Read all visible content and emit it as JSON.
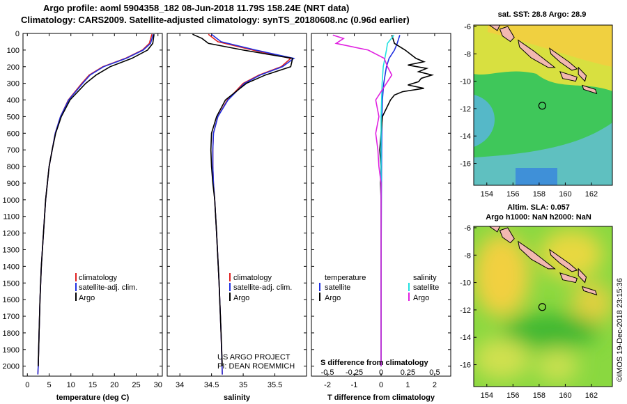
{
  "title": {
    "line1": "Argo profile: aoml 5904358_182 08-Jun-2018 11.79S 158.24E (NRT data)",
    "line2": "Climatology: CARS2009. Satellite-adjusted climatology: synTS_20180608.nc (0.96d earlier)"
  },
  "colors": {
    "climatology": "#e02020",
    "satellite": "#2030e0",
    "argo": "#000000",
    "sal_satellite": "#20e0e0",
    "sal_argo": "#e020e0"
  },
  "chart_data": [
    {
      "type": "line",
      "xlabel": "temperature (deg C)",
      "xlim": [
        -1,
        31
      ],
      "ylim": [
        2060,
        0
      ],
      "x_ticks": [
        0,
        5,
        10,
        15,
        20,
        25,
        30
      ],
      "y_ticks": [
        0,
        100,
        200,
        300,
        400,
        500,
        600,
        700,
        800,
        900,
        1000,
        1100,
        1200,
        1300,
        1400,
        1500,
        1600,
        1700,
        1800,
        1900,
        2000
      ],
      "legend": [
        "climatology",
        "satellite-adj. clim.",
        "Argo"
      ],
      "series": [
        {
          "name": "climatology",
          "depth": [
            5,
            60,
            100,
            150,
            200,
            250,
            300,
            400,
            500,
            600,
            700,
            800,
            900,
            1000,
            1200,
            1400,
            1600,
            1800,
            2000,
            2050
          ],
          "values": [
            28.6,
            28.0,
            26.4,
            22.5,
            17.3,
            14.2,
            12.5,
            9.4,
            7.6,
            6.4,
            5.7,
            5.0,
            4.6,
            4.2,
            3.7,
            3.2,
            2.9,
            2.7,
            2.5,
            2.4
          ]
        },
        {
          "name": "satellite-adj. clim.",
          "depth": [
            5,
            60,
            100,
            150,
            200,
            250,
            300,
            400,
            500,
            600,
            700,
            800,
            900,
            1000,
            1200,
            1400,
            1600,
            1800,
            2000,
            2050
          ],
          "values": [
            28.9,
            28.3,
            26.6,
            22.7,
            17.5,
            14.4,
            12.7,
            9.5,
            7.6,
            6.4,
            5.7,
            5.0,
            4.6,
            4.2,
            3.7,
            3.2,
            2.9,
            2.7,
            2.5,
            2.4
          ]
        },
        {
          "name": "Argo",
          "depth": [
            5,
            60,
            100,
            150,
            200,
            250,
            300,
            400,
            500,
            600,
            700,
            800,
            900,
            1000,
            1200,
            1400,
            1600,
            1800,
            2000
          ],
          "values": [
            29.1,
            28.8,
            27.6,
            24.0,
            19.0,
            15.8,
            13.4,
            9.8,
            7.8,
            6.5,
            5.7,
            5.0,
            4.6,
            4.2,
            3.7,
            3.2,
            2.9,
            2.7,
            2.5
          ]
        }
      ]
    },
    {
      "type": "line",
      "xlabel": "salinity",
      "xlim": [
        33.8,
        36.0
      ],
      "ylim": [
        2060,
        0
      ],
      "x_ticks": [
        34,
        34.5,
        35,
        35.5
      ],
      "legend": [
        "climatology",
        "satellite-adj. clim.",
        "Argo"
      ],
      "credit": [
        "US ARGO PROJECT",
        "PI: DEAN ROEMMICH"
      ],
      "series": [
        {
          "name": "climatology",
          "depth": [
            5,
            50,
            100,
            150,
            200,
            250,
            300,
            400,
            500,
            600,
            700,
            800,
            900,
            1000,
            1200,
            1500,
            1800,
            2050
          ],
          "values": [
            34.45,
            34.6,
            35.15,
            35.75,
            35.6,
            35.25,
            35.0,
            34.75,
            34.6,
            34.53,
            34.52,
            34.52,
            34.53,
            34.55,
            34.58,
            34.62,
            34.65,
            34.67
          ]
        },
        {
          "name": "satellite-adj. clim.",
          "depth": [
            5,
            50,
            100,
            150,
            200,
            250,
            300,
            400,
            500,
            600,
            700,
            800,
            900,
            1000,
            1200,
            1500,
            1800,
            2050
          ],
          "values": [
            34.5,
            34.65,
            35.2,
            35.8,
            35.62,
            35.27,
            35.02,
            34.76,
            34.6,
            34.53,
            34.52,
            34.52,
            34.53,
            34.55,
            34.58,
            34.62,
            34.65,
            34.67
          ]
        },
        {
          "name": "Argo",
          "depth": [
            5,
            30,
            60,
            100,
            150,
            200,
            250,
            300,
            400,
            500,
            600,
            700,
            800,
            900,
            1000,
            1200,
            1500,
            1800,
            2000
          ],
          "values": [
            34.2,
            34.35,
            34.45,
            35.0,
            35.78,
            35.75,
            35.35,
            35.05,
            34.72,
            34.58,
            34.5,
            34.49,
            34.5,
            34.52,
            34.55,
            34.58,
            34.62,
            34.65,
            34.67
          ]
        }
      ]
    },
    {
      "type": "line",
      "xlabel": "T difference from climatology",
      "xlabel2": "S difference from climatology",
      "xlim": [
        -2.6,
        2.6
      ],
      "ylim": [
        2060,
        0
      ],
      "t_ticks": [
        -2,
        -1,
        0,
        1,
        2
      ],
      "s_ticks": [
        "-0.5",
        "-0.25",
        "0",
        "0.25",
        "0.5"
      ],
      "legend_temperature": {
        "header": "temperature",
        "items": [
          "satellite",
          "Argo"
        ]
      },
      "legend_salinity": {
        "header": "salinity",
        "items": [
          "satellite",
          "Argo"
        ]
      },
      "series": [
        {
          "name": "temperature satellite",
          "depth": [
            10,
            60,
            100,
            150,
            200,
            300,
            400,
            500,
            700,
            1000,
            1500,
            2000
          ],
          "values": [
            0.7,
            0.6,
            0.5,
            0.3,
            0.2,
            0.1,
            0.05,
            0.03,
            0.02,
            0.01,
            0,
            0
          ]
        },
        {
          "name": "temperature Argo",
          "depth": [
            10,
            60,
            100,
            150,
            170,
            190,
            210,
            230,
            250,
            270,
            290,
            310,
            330,
            350,
            370,
            400,
            450,
            500,
            600,
            700,
            800,
            900,
            1000,
            1500,
            2000
          ],
          "values": [
            0.4,
            0.5,
            0.9,
            1.3,
            1.6,
            1.0,
            1.7,
            1.4,
            1.9,
            1.5,
            1.4,
            1.0,
            1.6,
            0.8,
            0.5,
            0.35,
            0.2,
            0.05,
            0.0,
            -0.05,
            0.0,
            -0.02,
            0.0,
            0.0,
            0.0
          ]
        },
        {
          "name": "salinity satellite",
          "depth": [
            10,
            60,
            100,
            200,
            300,
            500,
            700,
            1000,
            1500,
            2000
          ],
          "values": [
            0.12,
            0.06,
            0.05,
            0.02,
            0.01,
            0.0,
            0.0,
            0.0,
            0.0,
            0.0
          ]
        },
        {
          "name": "salinity Argo",
          "depth": [
            10,
            30,
            60,
            100,
            150,
            200,
            250,
            300,
            400,
            500,
            600,
            700,
            800,
            900,
            1000,
            1500,
            2000
          ],
          "values": [
            -0.45,
            -0.35,
            -0.42,
            -0.12,
            0.03,
            0.06,
            0.1,
            0.05,
            -0.05,
            -0.02,
            -0.05,
            -0.03,
            -0.02,
            0.0,
            0.0,
            0.0,
            0.0
          ]
        }
      ]
    },
    {
      "type": "heatmap",
      "title": "sat. SST: 28.8 Argo: 28.9",
      "xlim": [
        153,
        163.6
      ],
      "ylim": [
        -17.6,
        -5.9
      ],
      "x_ticks": [
        154,
        156,
        158,
        160,
        162
      ],
      "y_ticks": [
        -6,
        -8,
        -10,
        -12,
        -14,
        -16
      ],
      "marker": {
        "lon": 158.24,
        "lat": -11.79
      }
    },
    {
      "type": "heatmap",
      "title": "Altim. SLA: 0.057",
      "title2": "Argo h1000: NaN h2000: NaN",
      "xlim": [
        153,
        163.6
      ],
      "ylim": [
        -17.6,
        -5.9
      ],
      "x_ticks": [
        154,
        156,
        158,
        160,
        162
      ],
      "y_ticks": [
        -6,
        -8,
        -10,
        -12,
        -14,
        -16
      ],
      "marker": {
        "lon": 158.24,
        "lat": -11.79
      }
    }
  ],
  "watermark": "©IMOS 19-Dec-2018 23:15:36"
}
